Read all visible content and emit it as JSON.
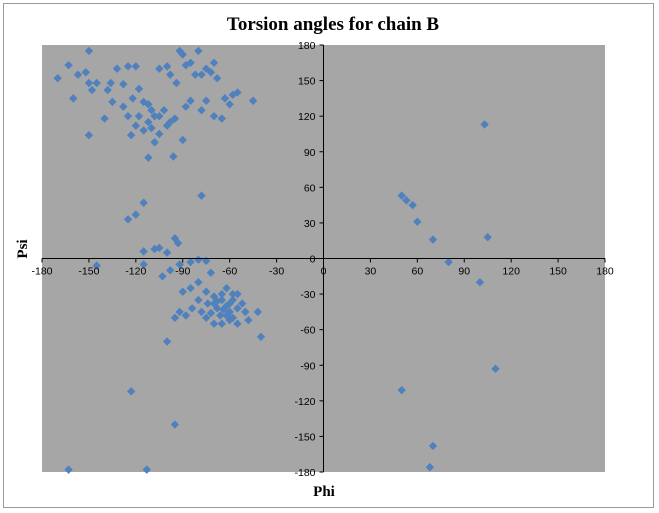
{
  "chart_data": {
    "type": "scatter",
    "title": "Torsion angles for chain B",
    "xlabel": "Phi",
    "ylabel": "Psi",
    "xlim": [
      -180,
      180
    ],
    "ylim": [
      -180,
      180
    ],
    "x_ticks": [
      -180,
      -150,
      -120,
      -90,
      -60,
      -30,
      0,
      30,
      60,
      90,
      120,
      150,
      180
    ],
    "y_ticks": [
      -180,
      -150,
      -120,
      -90,
      -60,
      -30,
      0,
      30,
      60,
      90,
      120,
      150,
      180
    ],
    "grid": false,
    "legend": "none",
    "colors": {
      "plot_background": "#a6a6a6",
      "marker": "#4f81bd",
      "axis": "#000000"
    },
    "series": [
      {
        "marker": "diamond",
        "points": [
          [
            -150,
            175
          ],
          [
            -80,
            175
          ],
          [
            -92,
            175
          ],
          [
            -170,
            152
          ],
          [
            -163,
            163
          ],
          [
            -157,
            155
          ],
          [
            -152,
            157
          ],
          [
            -150,
            148
          ],
          [
            -148,
            142
          ],
          [
            -160,
            135
          ],
          [
            -145,
            148
          ],
          [
            -138,
            142
          ],
          [
            -132,
            160
          ],
          [
            -125,
            162
          ],
          [
            -120,
            162
          ],
          [
            -128,
            147
          ],
          [
            -118,
            143
          ],
          [
            -115,
            132
          ],
          [
            -122,
            135
          ],
          [
            -135,
            132
          ],
          [
            -128,
            128
          ],
          [
            -112,
            130
          ],
          [
            -110,
            125
          ],
          [
            -118,
            120
          ],
          [
            -125,
            120
          ],
          [
            -120,
            112
          ],
          [
            -112,
            115
          ],
          [
            -108,
            120
          ],
          [
            -102,
            125
          ],
          [
            -105,
            120
          ],
          [
            -110,
            110
          ],
          [
            -100,
            112
          ],
          [
            -105,
            105
          ],
          [
            -115,
            108
          ],
          [
            -108,
            98
          ],
          [
            -98,
            115
          ],
          [
            -95,
            118
          ],
          [
            -112,
            85
          ],
          [
            -96,
            86
          ],
          [
            -90,
            100
          ],
          [
            -105,
            160
          ],
          [
            -98,
            155
          ],
          [
            -100,
            162
          ],
          [
            -94,
            148
          ],
          [
            -90,
            172
          ],
          [
            -88,
            163
          ],
          [
            -85,
            165
          ],
          [
            -82,
            155
          ],
          [
            -78,
            155
          ],
          [
            -75,
            160
          ],
          [
            -70,
            165
          ],
          [
            -72,
            157
          ],
          [
            -68,
            152
          ],
          [
            -75,
            133
          ],
          [
            -78,
            125
          ],
          [
            -85,
            133
          ],
          [
            -88,
            128
          ],
          [
            -70,
            120
          ],
          [
            -65,
            118
          ],
          [
            -63,
            135
          ],
          [
            -60,
            130
          ],
          [
            -58,
            138
          ],
          [
            -55,
            140
          ],
          [
            -45,
            133
          ],
          [
            -150,
            104
          ],
          [
            -123,
            104
          ],
          [
            -140,
            118
          ],
          [
            -136,
            148
          ],
          [
            -78,
            53
          ],
          [
            -115,
            47
          ],
          [
            -120,
            37
          ],
          [
            -125,
            33
          ],
          [
            -95,
            17
          ],
          [
            -93,
            13
          ],
          [
            -105,
            9
          ],
          [
            -100,
            5
          ],
          [
            -108,
            8
          ],
          [
            -115,
            6
          ],
          [
            -115,
            -5
          ],
          [
            -145,
            -6
          ],
          [
            -103,
            -15
          ],
          [
            -98,
            -10
          ],
          [
            -92,
            -5
          ],
          [
            -85,
            -3
          ],
          [
            -80,
            -1
          ],
          [
            -75,
            -2
          ],
          [
            -72,
            -12
          ],
          [
            -80,
            -20
          ],
          [
            -85,
            -25
          ],
          [
            -90,
            -28
          ],
          [
            -75,
            -28
          ],
          [
            -70,
            -32
          ],
          [
            -65,
            -35
          ],
          [
            -62,
            -40
          ],
          [
            -68,
            -42
          ],
          [
            -60,
            -45
          ],
          [
            -58,
            -50
          ],
          [
            -55,
            -42
          ],
          [
            -52,
            -38
          ],
          [
            -50,
            -45
          ],
          [
            -48,
            -52
          ],
          [
            -62,
            -25
          ],
          [
            -58,
            -30
          ],
          [
            -66,
            -48
          ],
          [
            -72,
            -46
          ],
          [
            -75,
            -50
          ],
          [
            -78,
            -45
          ],
          [
            -70,
            -55
          ],
          [
            -65,
            -55
          ],
          [
            -60,
            -52
          ],
          [
            -55,
            -55
          ],
          [
            -88,
            -48
          ],
          [
            -92,
            -45
          ],
          [
            -95,
            -50
          ],
          [
            -100,
            -70
          ],
          [
            -42,
            -45
          ],
          [
            -40,
            -66
          ],
          [
            -123,
            -112
          ],
          [
            -95,
            -140
          ],
          [
            -163,
            -178
          ],
          [
            -113,
            -178
          ],
          [
            -55,
            -30
          ],
          [
            -60,
            -38
          ],
          [
            -65,
            -30
          ],
          [
            -70,
            -38
          ],
          [
            -64,
            -43
          ],
          [
            -58,
            -35
          ],
          [
            -62,
            -48
          ],
          [
            -68,
            -36
          ],
          [
            -74,
            -38
          ],
          [
            -80,
            -35
          ],
          [
            -84,
            -42
          ],
          [
            103,
            113
          ],
          [
            50,
            53
          ],
          [
            53,
            49
          ],
          [
            57,
            45
          ],
          [
            60,
            31
          ],
          [
            70,
            16
          ],
          [
            105,
            18
          ],
          [
            80,
            -3
          ],
          [
            100,
            -20
          ],
          [
            110,
            -93
          ],
          [
            50,
            -111
          ],
          [
            70,
            -158
          ],
          [
            68,
            -176
          ]
        ]
      }
    ]
  }
}
